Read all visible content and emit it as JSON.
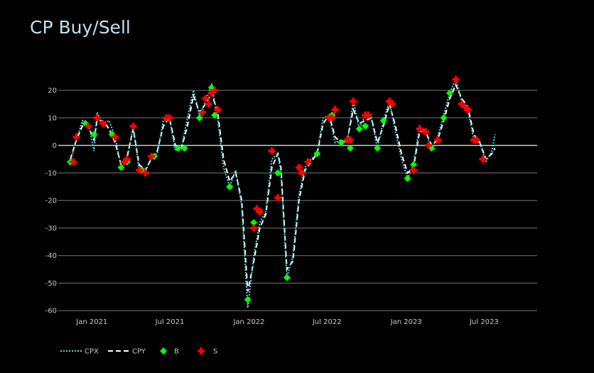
{
  "chart_data": {
    "type": "line",
    "title": "CP Buy/Sell",
    "xlabel": "",
    "ylabel": "",
    "ylim": [
      -62,
      27
    ],
    "xlim": [
      "2020-10-15",
      "2023-11-01"
    ],
    "yticks": [
      -60,
      -50,
      -40,
      -30,
      -20,
      -10,
      0,
      10,
      20
    ],
    "xticks": [
      {
        "date": "2021-01-01",
        "label": "Jan 2021"
      },
      {
        "date": "2021-07-01",
        "label": "Jul 2021"
      },
      {
        "date": "2022-01-01",
        "label": "Jan 2022"
      },
      {
        "date": "2022-07-01",
        "label": "Jul 2022"
      },
      {
        "date": "2023-01-01",
        "label": "Jan 2023"
      },
      {
        "date": "2023-07-01",
        "label": "Jul 2023"
      }
    ],
    "grid": true,
    "legend_position": "bottom-left",
    "colors": {
      "cpx": "#5fd8e0",
      "cpy": "#ffffff",
      "buy": "#00ff00",
      "sell": "#ff0000",
      "grid": "#777777"
    },
    "legend": [
      {
        "key": "cpx",
        "label": "CPX"
      },
      {
        "key": "cpy",
        "label": "CPY"
      },
      {
        "key": "buy",
        "label": "B"
      },
      {
        "key": "sell",
        "label": "S"
      }
    ],
    "series": [
      {
        "name": "CPX",
        "style": "dotted",
        "points": [
          [
            "2020-11-12",
            -6
          ],
          [
            "2020-11-26",
            2
          ],
          [
            "2020-12-10",
            9
          ],
          [
            "2020-12-24",
            8
          ],
          [
            "2021-01-06",
            -2
          ],
          [
            "2021-01-13",
            12
          ],
          [
            "2021-01-27",
            8
          ],
          [
            "2021-02-10",
            9
          ],
          [
            "2021-02-24",
            3
          ],
          [
            "2021-03-10",
            -8
          ],
          [
            "2021-03-24",
            -5
          ],
          [
            "2021-04-07",
            7
          ],
          [
            "2021-04-21",
            -9
          ],
          [
            "2021-05-05",
            -10
          ],
          [
            "2021-05-19",
            -4
          ],
          [
            "2021-06-02",
            -3
          ],
          [
            "2021-06-16",
            9
          ],
          [
            "2021-06-30",
            10
          ],
          [
            "2021-07-14",
            -2
          ],
          [
            "2021-07-28",
            -1
          ],
          [
            "2021-08-11",
            10
          ],
          [
            "2021-08-25",
            20
          ],
          [
            "2021-09-08",
            11
          ],
          [
            "2021-09-22",
            16
          ],
          [
            "2021-10-06",
            22
          ],
          [
            "2021-10-20",
            10
          ],
          [
            "2021-11-03",
            -8
          ],
          [
            "2021-11-17",
            -15
          ],
          [
            "2021-12-01",
            -9
          ],
          [
            "2021-12-15",
            -22
          ],
          [
            "2021-12-29",
            -59
          ],
          [
            "2022-01-12",
            -40
          ],
          [
            "2022-01-26",
            -28
          ],
          [
            "2022-02-09",
            -24
          ],
          [
            "2022-02-23",
            -5
          ],
          [
            "2022-03-09",
            -3
          ],
          [
            "2022-03-16",
            -10
          ],
          [
            "2022-03-30",
            -48
          ],
          [
            "2022-04-13",
            -40
          ],
          [
            "2022-04-27",
            -18
          ],
          [
            "2022-05-11",
            -8
          ],
          [
            "2022-05-25",
            -5
          ],
          [
            "2022-06-08",
            -3
          ],
          [
            "2022-06-22",
            10
          ],
          [
            "2022-07-06",
            11
          ],
          [
            "2022-07-20",
            1
          ],
          [
            "2022-08-03",
            2
          ],
          [
            "2022-08-17",
            1
          ],
          [
            "2022-08-31",
            16
          ],
          [
            "2022-09-14",
            6
          ],
          [
            "2022-09-28",
            11
          ],
          [
            "2022-10-12",
            10
          ],
          [
            "2022-10-26",
            -1
          ],
          [
            "2022-11-09",
            9
          ],
          [
            "2022-11-23",
            16
          ],
          [
            "2022-12-07",
            5
          ],
          [
            "2022-12-21",
            -5
          ],
          [
            "2023-01-04",
            -12
          ],
          [
            "2023-01-18",
            -7
          ],
          [
            "2023-02-01",
            7
          ],
          [
            "2023-02-15",
            5
          ],
          [
            "2023-03-01",
            -1
          ],
          [
            "2023-03-15",
            3
          ],
          [
            "2023-03-29",
            11
          ],
          [
            "2023-04-12",
            19
          ],
          [
            "2023-04-26",
            24
          ],
          [
            "2023-05-10",
            16
          ],
          [
            "2023-05-24",
            13
          ],
          [
            "2023-06-07",
            2
          ],
          [
            "2023-06-21",
            1
          ],
          [
            "2023-07-05",
            -6
          ],
          [
            "2023-07-19",
            -2
          ],
          [
            "2023-07-26",
            4
          ]
        ]
      },
      {
        "name": "CPY",
        "style": "dashed",
        "points": [
          [
            "2020-11-12",
            -5
          ],
          [
            "2020-11-26",
            2
          ],
          [
            "2020-12-10",
            7
          ],
          [
            "2020-12-24",
            7
          ],
          [
            "2021-01-06",
            2
          ],
          [
            "2021-01-13",
            9
          ],
          [
            "2021-01-27",
            9
          ],
          [
            "2021-02-10",
            6
          ],
          [
            "2021-02-24",
            1
          ],
          [
            "2021-03-10",
            -7
          ],
          [
            "2021-03-24",
            -4
          ],
          [
            "2021-04-07",
            6
          ],
          [
            "2021-04-21",
            -7
          ],
          [
            "2021-05-05",
            -9
          ],
          [
            "2021-05-19",
            -5
          ],
          [
            "2021-06-02",
            -2
          ],
          [
            "2021-06-16",
            7
          ],
          [
            "2021-06-30",
            10
          ],
          [
            "2021-07-14",
            0
          ],
          [
            "2021-07-28",
            -1
          ],
          [
            "2021-08-11",
            7
          ],
          [
            "2021-08-25",
            18
          ],
          [
            "2021-09-08",
            12
          ],
          [
            "2021-09-22",
            15
          ],
          [
            "2021-10-06",
            19
          ],
          [
            "2021-10-20",
            12
          ],
          [
            "2021-11-03",
            -5
          ],
          [
            "2021-11-17",
            -13
          ],
          [
            "2021-12-01",
            -10
          ],
          [
            "2021-12-15",
            -20
          ],
          [
            "2021-12-29",
            -53
          ],
          [
            "2022-01-12",
            -42
          ],
          [
            "2022-01-26",
            -30
          ],
          [
            "2022-02-09",
            -25
          ],
          [
            "2022-02-23",
            -8
          ],
          [
            "2022-03-09",
            -3
          ],
          [
            "2022-03-16",
            -8
          ],
          [
            "2022-03-30",
            -45
          ],
          [
            "2022-04-13",
            -42
          ],
          [
            "2022-04-27",
            -20
          ],
          [
            "2022-05-11",
            -9
          ],
          [
            "2022-05-25",
            -6
          ],
          [
            "2022-06-08",
            -3
          ],
          [
            "2022-06-22",
            8
          ],
          [
            "2022-07-06",
            11
          ],
          [
            "2022-07-20",
            3
          ],
          [
            "2022-08-03",
            1
          ],
          [
            "2022-08-17",
            2
          ],
          [
            "2022-08-31",
            13
          ],
          [
            "2022-09-14",
            8
          ],
          [
            "2022-09-28",
            9
          ],
          [
            "2022-10-12",
            10
          ],
          [
            "2022-10-26",
            1
          ],
          [
            "2022-11-09",
            7
          ],
          [
            "2022-11-23",
            15
          ],
          [
            "2022-12-07",
            7
          ],
          [
            "2022-12-21",
            -3
          ],
          [
            "2023-01-04",
            -10
          ],
          [
            "2023-01-18",
            -8
          ],
          [
            "2023-02-01",
            5
          ],
          [
            "2023-02-15",
            5
          ],
          [
            "2023-03-01",
            0
          ],
          [
            "2023-03-15",
            2
          ],
          [
            "2023-03-29",
            9
          ],
          [
            "2023-04-12",
            17
          ],
          [
            "2023-04-26",
            22
          ],
          [
            "2023-05-10",
            17
          ],
          [
            "2023-05-24",
            14
          ],
          [
            "2023-06-07",
            4
          ],
          [
            "2023-06-21",
            1
          ],
          [
            "2023-07-05",
            -5
          ],
          [
            "2023-07-19",
            -3
          ],
          [
            "2023-07-26",
            -1
          ]
        ]
      }
    ],
    "buy_points": [
      [
        "2020-11-12",
        -6
      ],
      [
        "2020-12-17",
        8
      ],
      [
        "2021-01-06",
        4
      ],
      [
        "2021-02-17",
        4
      ],
      [
        "2021-03-10",
        -8
      ],
      [
        "2021-03-24",
        -6
      ],
      [
        "2021-04-28",
        -9
      ],
      [
        "2021-05-26",
        -4
      ],
      [
        "2021-07-21",
        -1
      ],
      [
        "2021-08-04",
        -1
      ],
      [
        "2021-09-08",
        10
      ],
      [
        "2021-10-06",
        21
      ],
      [
        "2021-10-13",
        11
      ],
      [
        "2021-11-17",
        -15
      ],
      [
        "2021-12-29",
        -56
      ],
      [
        "2022-01-12",
        -28
      ],
      [
        "2022-01-26",
        -24
      ],
      [
        "2022-03-09",
        -10
      ],
      [
        "2022-03-30",
        -48
      ],
      [
        "2022-05-04",
        -10
      ],
      [
        "2022-06-08",
        -3
      ],
      [
        "2022-07-13",
        11
      ],
      [
        "2022-08-03",
        1
      ],
      [
        "2022-08-24",
        -1
      ],
      [
        "2022-09-14",
        6
      ],
      [
        "2022-09-28",
        7
      ],
      [
        "2022-10-26",
        -1
      ],
      [
        "2022-11-09",
        9
      ],
      [
        "2023-01-04",
        -12
      ],
      [
        "2023-01-18",
        -7
      ],
      [
        "2023-03-01",
        -1
      ],
      [
        "2023-03-29",
        10
      ],
      [
        "2023-04-12",
        19
      ]
    ],
    "sell_points": [
      [
        "2020-11-19",
        -6
      ],
      [
        "2020-11-26",
        3
      ],
      [
        "2020-12-24",
        7
      ],
      [
        "2021-01-13",
        10
      ],
      [
        "2021-01-27",
        8
      ],
      [
        "2021-02-24",
        3
      ],
      [
        "2021-03-17",
        -6
      ],
      [
        "2021-03-24",
        -5
      ],
      [
        "2021-04-07",
        7
      ],
      [
        "2021-04-21",
        -9
      ],
      [
        "2021-05-05",
        -10
      ],
      [
        "2021-05-19",
        -4
      ],
      [
        "2021-06-23",
        10
      ],
      [
        "2021-06-30",
        10
      ],
      [
        "2021-09-15",
        12
      ],
      [
        "2021-09-22",
        17
      ],
      [
        "2021-09-29",
        15
      ],
      [
        "2021-10-06",
        19
      ],
      [
        "2021-10-13",
        20
      ],
      [
        "2021-10-20",
        13
      ],
      [
        "2022-01-12",
        -30
      ],
      [
        "2022-01-19",
        -23
      ],
      [
        "2022-01-26",
        -24
      ],
      [
        "2022-02-23",
        -2
      ],
      [
        "2022-03-09",
        -19
      ],
      [
        "2022-04-27",
        -8
      ],
      [
        "2022-05-04",
        -10
      ],
      [
        "2022-05-18",
        -6
      ],
      [
        "2022-07-06",
        10
      ],
      [
        "2022-07-13",
        10
      ],
      [
        "2022-07-20",
        13
      ],
      [
        "2022-08-17",
        2
      ],
      [
        "2022-08-24",
        2
      ],
      [
        "2022-08-31",
        16
      ],
      [
        "2022-09-28",
        11
      ],
      [
        "2022-10-05",
        11
      ],
      [
        "2022-11-23",
        16
      ],
      [
        "2022-11-30",
        15
      ],
      [
        "2023-01-18",
        -9
      ],
      [
        "2023-02-01",
        6
      ],
      [
        "2023-02-15",
        5
      ],
      [
        "2023-02-22",
        0
      ],
      [
        "2023-03-15",
        2
      ],
      [
        "2023-04-26",
        24
      ],
      [
        "2023-05-10",
        15
      ],
      [
        "2023-05-17",
        14
      ],
      [
        "2023-05-24",
        13
      ],
      [
        "2023-06-07",
        2
      ],
      [
        "2023-06-14",
        2
      ],
      [
        "2023-06-28",
        -5
      ]
    ]
  }
}
